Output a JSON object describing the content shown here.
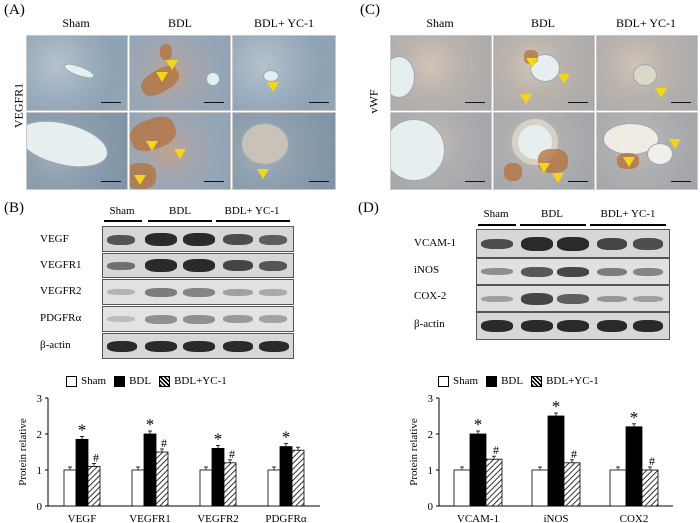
{
  "panels": {
    "A": {
      "label": "(A)",
      "row_label": "VEGFR1",
      "columns": [
        "Sham",
        "BDL",
        "BDL+ YC-1"
      ]
    },
    "C": {
      "label": "(C)",
      "row_label": "vWF",
      "columns": [
        "Sham",
        "BDL",
        "BDL+ YC-1"
      ]
    },
    "B": {
      "label": "(B)",
      "lanes": [
        "Sham",
        "BDL",
        "BDL+ YC-1"
      ],
      "rows": [
        "VEGF",
        "VEGFR1",
        "VEGFR2",
        "PDGFRα",
        "β-actin"
      ]
    },
    "D": {
      "label": "(D)",
      "lanes": [
        "Sham",
        "BDL",
        "BDL+ YC-1"
      ],
      "rows": [
        "VCAM-1",
        "iNOS",
        "COX-2",
        "β-actin"
      ]
    }
  },
  "legend": {
    "sham": "Sham",
    "bdl": "BDL",
    "yc1": "BDL+YC-1"
  },
  "colors": {
    "arrow": "#f3d51a",
    "stain": "#b4703a"
  },
  "chart_data": [
    {
      "type": "bar",
      "ylabel": "Protein relative",
      "ylim": [
        0,
        3
      ],
      "yticks": [
        "0",
        "1",
        "2",
        "3"
      ],
      "categories": [
        "VEGF",
        "VEGFR1",
        "VEGFR2",
        "PDGFRα"
      ],
      "series": [
        {
          "name": "Sham",
          "values": [
            1.0,
            1.0,
            1.0,
            1.0
          ]
        },
        {
          "name": "BDL",
          "values": [
            1.85,
            2.0,
            1.6,
            1.65
          ]
        },
        {
          "name": "BDL+YC-1",
          "values": [
            1.1,
            1.5,
            1.2,
            1.55
          ]
        }
      ],
      "annotations": [
        {
          "category": "VEGF",
          "series": "BDL",
          "text": "*"
        },
        {
          "category": "VEGF",
          "series": "BDL+YC-1",
          "text": "#"
        },
        {
          "category": "VEGFR1",
          "series": "BDL",
          "text": "*"
        },
        {
          "category": "VEGFR1",
          "series": "BDL+YC-1",
          "text": "#"
        },
        {
          "category": "VEGFR2",
          "series": "BDL",
          "text": "*"
        },
        {
          "category": "VEGFR2",
          "series": "BDL+YC-1",
          "text": "#"
        },
        {
          "category": "PDGFRα",
          "series": "BDL",
          "text": "*"
        }
      ]
    },
    {
      "type": "bar",
      "ylabel": "Protein relative",
      "ylim": [
        0,
        3
      ],
      "yticks": [
        "0",
        "1",
        "2",
        "3"
      ],
      "categories": [
        "VCAM-1",
        "iNOS",
        "COX2"
      ],
      "series": [
        {
          "name": "Sham",
          "values": [
            1.0,
            1.0,
            1.0
          ]
        },
        {
          "name": "BDL",
          "values": [
            2.0,
            2.5,
            2.2
          ]
        },
        {
          "name": "BDL+YC-1",
          "values": [
            1.3,
            1.2,
            1.0
          ]
        }
      ],
      "annotations": [
        {
          "category": "VCAM-1",
          "series": "BDL",
          "text": "*"
        },
        {
          "category": "VCAM-1",
          "series": "BDL+YC-1",
          "text": "#"
        },
        {
          "category": "iNOS",
          "series": "BDL",
          "text": "*"
        },
        {
          "category": "iNOS",
          "series": "BDL+YC-1",
          "text": "#"
        },
        {
          "category": "COX2",
          "series": "BDL",
          "text": "*"
        },
        {
          "category": "COX2",
          "series": "BDL+YC-1",
          "text": "#"
        }
      ]
    }
  ]
}
